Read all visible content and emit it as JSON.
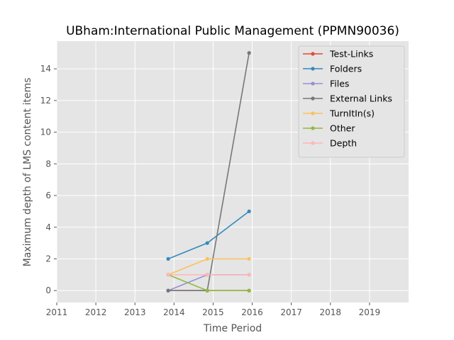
{
  "chart_data": {
    "type": "line",
    "title": "UBham:International Public Management (PPMN90036)",
    "xlabel": "Time Period",
    "ylabel": "Maximum depth of LMS content items",
    "xlim": [
      2011,
      2020
    ],
    "ylim": [
      -0.75,
      15.75
    ],
    "x_ticks": [
      "2011",
      "2012",
      "2013",
      "2014",
      "2015",
      "2016",
      "2017",
      "2018",
      "2019"
    ],
    "y_ticks": [
      "0",
      "2",
      "4",
      "6",
      "8",
      "10",
      "12",
      "14"
    ],
    "grid": true,
    "legend_position": "top-right",
    "x": [
      2013.85,
      2014.85,
      2015.92
    ],
    "series": [
      {
        "name": "Test-Links",
        "color": "#E24A33",
        "values": [
          0,
          0,
          0
        ]
      },
      {
        "name": "Folders",
        "color": "#348ABD",
        "values": [
          2,
          3,
          5
        ]
      },
      {
        "name": "Files",
        "color": "#988ED5",
        "values": [
          0,
          1,
          1
        ]
      },
      {
        "name": "External Links",
        "color": "#777777",
        "values": [
          0,
          0,
          15
        ]
      },
      {
        "name": "TurnItIn(s)",
        "color": "#FBC15E",
        "values": [
          1,
          2,
          2
        ]
      },
      {
        "name": "Other",
        "color": "#8EBA42",
        "values": [
          1,
          0,
          0
        ]
      },
      {
        "name": "Depth",
        "color": "#FFB5B8",
        "values": [
          1,
          1,
          1
        ]
      }
    ]
  }
}
